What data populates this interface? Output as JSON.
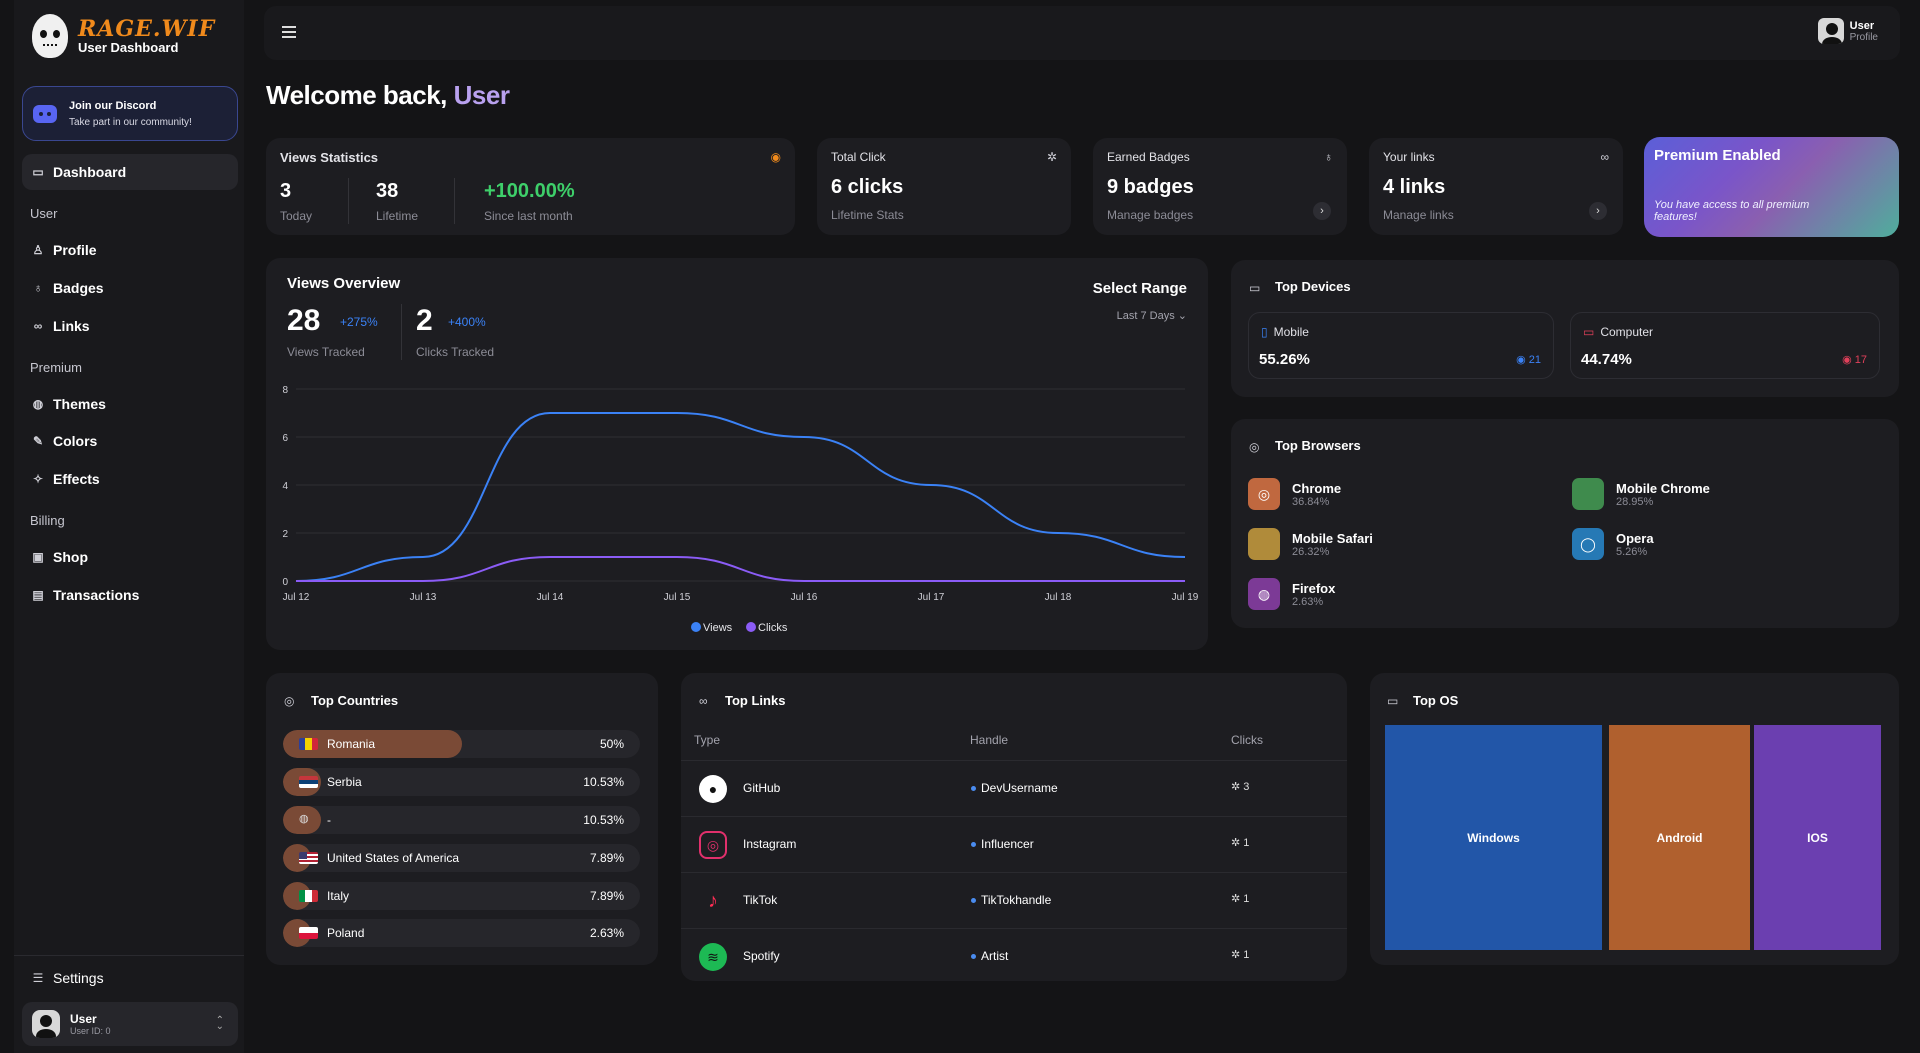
{
  "brand": {
    "logo": "RAGE.WIF",
    "subtitle": "User Dashboard"
  },
  "discord": {
    "title": "Join our Discord",
    "subtitle": "Take part in our community!"
  },
  "nav": {
    "dashboard": "Dashboard",
    "sec_user": "User",
    "profile": "Profile",
    "badges": "Badges",
    "links": "Links",
    "sec_premium": "Premium",
    "themes": "Themes",
    "colors": "Colors",
    "effects": "Effects",
    "sec_billing": "Billing",
    "shop": "Shop",
    "transactions": "Transactions",
    "settings": "Settings"
  },
  "side_user": {
    "name": "User",
    "id": "User ID: 0"
  },
  "topbar": {
    "user": "User",
    "role": "Profile"
  },
  "welcome": {
    "prefix": "Welcome back,",
    "name": "User"
  },
  "views": {
    "title": "Views Statistics",
    "today": "3",
    "today_lbl": "Today",
    "lifetime": "38",
    "lifetime_lbl": "Lifetime",
    "change": "+100.00%",
    "change_lbl": "Since last month"
  },
  "total_click": {
    "title": "Total Click",
    "value": "6 clicks",
    "sub": "Lifetime Stats"
  },
  "earned_badges": {
    "title": "Earned Badges",
    "value": "9 badges",
    "sub": "Manage badges"
  },
  "your_links": {
    "title": "Your links",
    "value": "4 links",
    "sub": "Manage links"
  },
  "premium": {
    "title": "Premium Enabled",
    "subtitle": "You have access to all premium features!"
  },
  "overview": {
    "title": "Views Overview",
    "views": "28",
    "views_pct": "+275%",
    "views_lbl": "Views Tracked",
    "clicks": "2",
    "clicks_pct": "+400%",
    "clicks_lbl": "Clicks Tracked",
    "range_title": "Select Range",
    "range_value": "Last 7 Days"
  },
  "chart_data": {
    "type": "line",
    "x": [
      "Jul 12",
      "Jul 13",
      "Jul 14",
      "Jul 15",
      "Jul 16",
      "Jul 17",
      "Jul 18",
      "Jul 19"
    ],
    "yticks": [
      "0",
      "2",
      "4",
      "6",
      "8"
    ],
    "ylim": [
      0,
      8
    ],
    "series": [
      {
        "name": "Views",
        "color": "#3b82f6",
        "values": [
          0,
          1,
          7,
          7,
          6,
          4,
          2,
          1
        ]
      },
      {
        "name": "Clicks",
        "color": "#8b5cf6",
        "values": [
          0,
          0,
          1,
          1,
          0,
          0,
          0,
          0
        ]
      }
    ]
  },
  "devices": {
    "title": "Top Devices",
    "mobile": {
      "name": "Mobile",
      "pct": "55.26%",
      "count": "21"
    },
    "computer": {
      "name": "Computer",
      "pct": "44.74%",
      "count": "17"
    }
  },
  "browsers": {
    "title": "Top Browsers",
    "items": [
      {
        "name": "Chrome",
        "pct": "36.84%",
        "color": "#c0683f"
      },
      {
        "name": "Mobile Chrome",
        "pct": "28.95%",
        "color": "#3f8b4d"
      },
      {
        "name": "Mobile Safari",
        "pct": "26.32%",
        "color": "#b08b3a"
      },
      {
        "name": "Opera",
        "pct": "5.26%",
        "color": "#2679b5"
      },
      {
        "name": "Firefox",
        "pct": "2.63%",
        "color": "#7c3a96"
      }
    ]
  },
  "countries": {
    "title": "Top Countries",
    "items": [
      {
        "name": "Romania",
        "pct": "50%",
        "fill": 0.5
      },
      {
        "name": "Serbia",
        "pct": "10.53%",
        "fill": 0.1053
      },
      {
        "name": "-",
        "pct": "10.53%",
        "fill": 0.1053
      },
      {
        "name": "United States of America",
        "pct": "7.89%",
        "fill": 0.0789
      },
      {
        "name": "Italy",
        "pct": "7.89%",
        "fill": 0.0789
      },
      {
        "name": "Poland",
        "pct": "2.63%",
        "fill": 0.0263
      }
    ]
  },
  "top_links": {
    "title": "Top Links",
    "headers": [
      "Type",
      "Handle",
      "Clicks"
    ],
    "rows": [
      {
        "type": "GitHub",
        "handle": "DevUsername",
        "clicks": "3"
      },
      {
        "type": "Instagram",
        "handle": "Influencer",
        "clicks": "1"
      },
      {
        "type": "TikTok",
        "handle": "TikTokhandle",
        "clicks": "1"
      },
      {
        "type": "Spotify",
        "handle": "Artist",
        "clicks": "1"
      }
    ]
  },
  "top_os": {
    "title": "Top OS",
    "items": [
      {
        "name": "Windows",
        "color": "#2256a8"
      },
      {
        "name": "Android",
        "color": "#b0602e"
      },
      {
        "name": "IOS",
        "color": "#6b3fb0"
      }
    ]
  }
}
